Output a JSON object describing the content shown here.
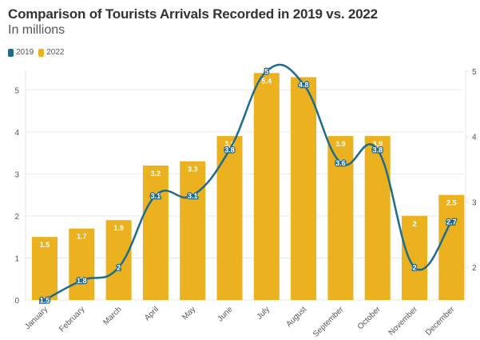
{
  "chart_data": {
    "type": "bar",
    "title": "Comparison of Tourists Arrivals Recorded in 2019 vs. 2022",
    "subtitle": "In millions",
    "categories": [
      "January",
      "February",
      "March",
      "April",
      "May",
      "June",
      "July",
      "August",
      "September",
      "October",
      "November",
      "December"
    ],
    "series": [
      {
        "name": "2019",
        "type": "line",
        "axis": "right",
        "color": "#1f6a8f",
        "values": [
          1.5,
          1.8,
          2,
          3.1,
          3.1,
          3.8,
          5,
          4.8,
          3.6,
          3.8,
          2,
          2.7
        ]
      },
      {
        "name": "2022",
        "type": "bar",
        "axis": "left",
        "color": "#ebb11e",
        "values": [
          1.5,
          1.7,
          1.9,
          3.2,
          3.3,
          3.9,
          5.4,
          5.3,
          3.9,
          3.9,
          2,
          2.5
        ]
      }
    ],
    "left_axis": {
      "ticks": [
        0,
        1,
        2,
        3,
        4,
        5
      ],
      "range": [
        0,
        5.5
      ]
    },
    "right_axis": {
      "ticks": [
        2,
        3,
        4,
        5
      ],
      "range": [
        1.5,
        5
      ]
    },
    "xlabel": "",
    "ylabel": "",
    "grid": true,
    "legend": "top-left"
  },
  "legend": {
    "items": [
      {
        "label": "2019",
        "color": "#1f6a8f"
      },
      {
        "label": "2022",
        "color": "#ebb11e"
      }
    ]
  }
}
